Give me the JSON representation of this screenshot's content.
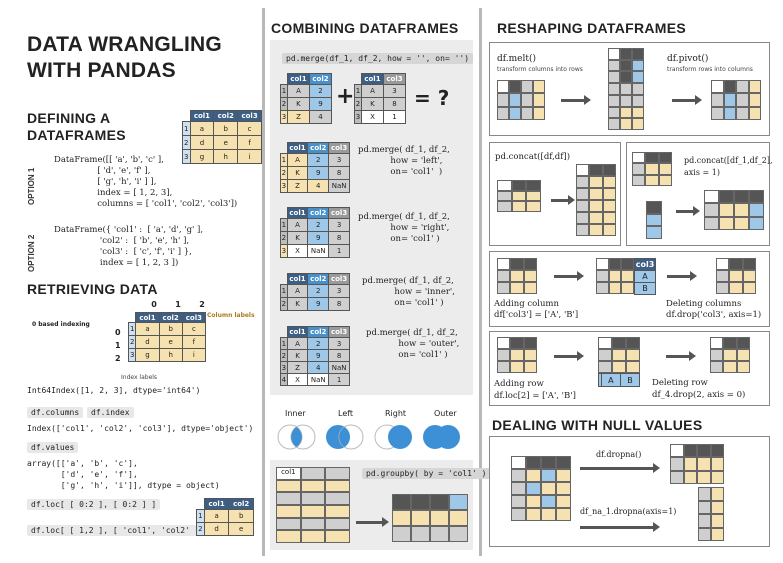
{
  "left": {
    "title_line1": "DATA WRANGLING",
    "title_line2": "WITH PANDAS",
    "defining_title_line1": "DEFINING A",
    "defining_title_line2": "DATAFRAMES",
    "option1_label": "OPTION 1",
    "option1_code": "DataFrame([[ 'a', 'b', 'c' ],\n                [ 'd', 'e', 'f' ],\n                [ 'g', 'h', 'i' ] ],\n                index = [ 1, 2, 3],\n                columns = [ 'col1', 'col2', 'col3'])",
    "option2_label": "OPTION 2",
    "option2_code": "DataFrame({ 'col1' :  [ 'a', 'd', 'g' ],\n                 'col2' :  [ 'b', 'e', 'h' ],\n                 'col3' :  [ 'c', 'f', 'i' ] },\n                 index = [ 1, 2, 3 ])",
    "columns": [
      "col1",
      "col2",
      "col3"
    ],
    "rows": [
      [
        "1",
        "a",
        "b",
        "c"
      ],
      [
        "2",
        "d",
        "e",
        "f"
      ],
      [
        "3",
        "g",
        "h",
        "i"
      ]
    ],
    "retrieving_title": "RETRIEVING  DATA",
    "zero_based_label": "0 based indexing",
    "column_numbers": [
      "0",
      "1",
      "2"
    ],
    "row_numbers": [
      "0",
      "1",
      "2"
    ],
    "column_labels_note": "Column labels",
    "index_labels_note": "Index labels",
    "int64index_text": "Int64Index([1, 2, 3], dtype='int64')",
    "df_columns": "df.columns",
    "df_index": "df.index",
    "index_cols_text": "Index(['col1', 'col2', 'col3'], dtype='object')",
    "df_values": "df.values",
    "array_text": "array([['a', 'b', 'c'],\n       ['d', 'e', 'f'],\n       ['g', 'h', 'i']], dtype = object)",
    "iloc_chip": "df.loc[ [ 0:2 ], [ 0:2 ] ]",
    "loc_chip": "df.loc[ [ 1,2 ], [ 'col1', 'col2' ] ]",
    "small_cols": [
      "col1",
      "col2"
    ],
    "small_rows": [
      [
        "1",
        "a",
        "b"
      ],
      [
        "2",
        "d",
        "e"
      ]
    ]
  },
  "middle": {
    "title": "COMBINING  DATAFRAMES",
    "merge_chip": "pd.merge(df_1, df_2, how = '', on= '')",
    "question": "= ?",
    "plus": "+",
    "df1_cols": [
      "col1",
      "col2"
    ],
    "df1_rows": [
      [
        "1",
        "A",
        "2"
      ],
      [
        "2",
        "K",
        "9"
      ],
      [
        "3",
        "Z",
        "4"
      ]
    ],
    "df2_cols": [
      "col1",
      "col3"
    ],
    "df2_rows": [
      [
        "1",
        "A",
        "3"
      ],
      [
        "2",
        "K",
        "8"
      ],
      [
        "3",
        "X",
        "1"
      ]
    ],
    "merge_cols": [
      "col1",
      "col2",
      "col3"
    ],
    "left_rows": [
      [
        "1",
        "A",
        "2",
        "3"
      ],
      [
        "2",
        "K",
        "9",
        "8"
      ],
      [
        "3",
        "Z",
        "4",
        "NaN"
      ]
    ],
    "right_rows": [
      [
        "1",
        "A",
        "2",
        "3"
      ],
      [
        "2",
        "K",
        "9",
        "8"
      ],
      [
        "3",
        "X",
        "NaN",
        "1"
      ]
    ],
    "inner_rows": [
      [
        "1",
        "A",
        "2",
        "3"
      ],
      [
        "2",
        "K",
        "9",
        "8"
      ]
    ],
    "outer_rows": [
      [
        "1",
        "A",
        "2",
        "3"
      ],
      [
        "2",
        "K",
        "9",
        "8"
      ],
      [
        "3",
        "Z",
        "4",
        "NaN"
      ],
      [
        "4",
        "X",
        "NaN",
        "1"
      ]
    ],
    "left_code": "pd.merge( df_1, df_2,\n            how = 'left',\n            on= 'col1'  )",
    "right_code": "pd.merge( df_1, df_2,\n            how = 'right',\n            on= 'col1' )",
    "inner_code": "pd.merge( df_1, df_2,\n            how = 'inner',\n            on= 'col1' )",
    "outer_code": "pd.merge( df_1, df_2,\n            how = 'outer',\n            on= 'col1' )",
    "venn_labels": [
      "Inner",
      "Left",
      "Right",
      "Outer"
    ],
    "groupby_chip": "pd.groupby( by = 'col1' )",
    "groupby_col": "col1"
  },
  "right": {
    "title": "RESHAPING  DATAFRAMES",
    "melt": "df.melt()",
    "melt_desc": "transform columns into rows",
    "pivot": "df.pivot()",
    "pivot_desc": "transform rows into columns",
    "concat1": "pd.concat([df,df])",
    "concat2_line1": "pd.concat([df_1,df_2],",
    "concat2_line2": "axis = 1)",
    "adding_column_line1": "Adding column",
    "adding_column_line2": "df['col3'] = ['A', 'B']",
    "col3_header": "col3",
    "col3_values": [
      "A",
      "B"
    ],
    "deleting_columns_line1": "Deleting columns",
    "deleting_columns_line2": "df.drop('col3', axis=1)",
    "adding_row_line1": "Adding row",
    "adding_row_line2": "df.loc[2] = ['A', 'B']",
    "row_values": [
      "A",
      "B"
    ],
    "deleting_row_line1": "Deleting row",
    "deleting_row_line2": "df_4.drop(2, axis = 0)",
    "null_title": "DEALING WITH NULL VALUES",
    "dropna": "df.dropna()",
    "dropna_axis": "df_na_1.dropna(axis=1)"
  }
}
